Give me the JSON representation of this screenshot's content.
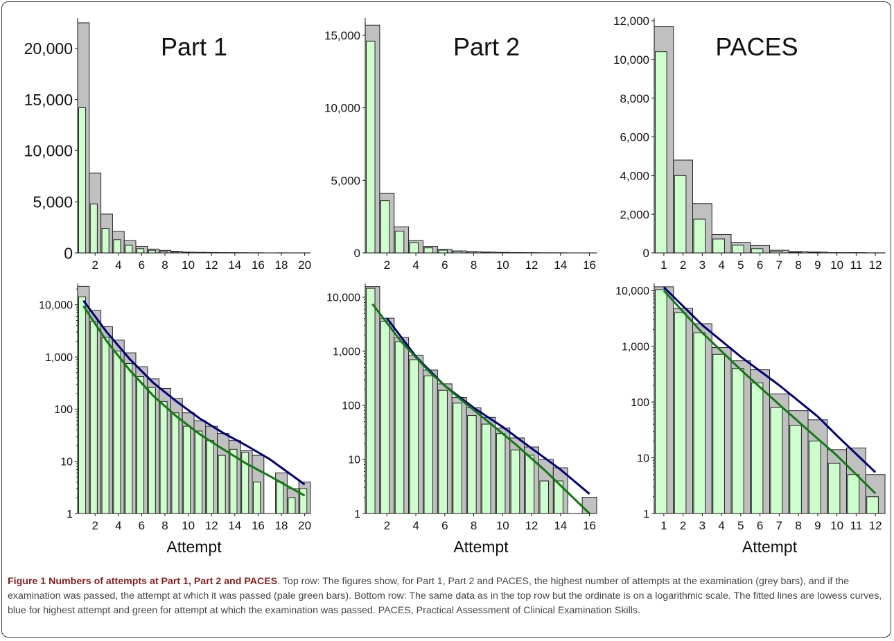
{
  "colors": {
    "grey_bar": "#c0c0c0",
    "green_bar": "#ccffcc",
    "blue_line": "#00007f",
    "green_line": "#117a11",
    "caption_title": "#8b1a1a"
  },
  "caption": {
    "title": "Figure 1 Numbers of attempts at Part 1, Part 2 and PACES",
    "text": ". Top row: The figures show, for Part 1, Part 2 and PACES, the highest number of attempts at the examination (grey bars), and if the examination was passed, the attempt at which it was passed (pale green bars). Bottom row: The same data as in the top row but the ordinate is on a logarithmic scale. The fitted lines are lowess curves, blue for highest attempt and green for attempt at which the examination was passed. PACES, Practical Assessment of Clinical Examination Skills."
  },
  "chart_data": [
    {
      "type": "bar",
      "title": "Part 1",
      "xlabel": "",
      "ylabel": "",
      "yscale": "linear",
      "ylim": [
        0,
        22700
      ],
      "yticks": [
        0,
        5000,
        10000,
        15000,
        20000
      ],
      "ytick_labels": [
        "0",
        "5,000",
        "10,000",
        "15,000",
        "20,000"
      ],
      "xticks": [
        2,
        4,
        6,
        8,
        10,
        12,
        14,
        16,
        18,
        20
      ],
      "categories": [
        1,
        2,
        3,
        4,
        5,
        6,
        7,
        8,
        9,
        10,
        11,
        12,
        13,
        14,
        15,
        16,
        17,
        18,
        19,
        20
      ],
      "series": [
        {
          "name": "highest attempt",
          "values": [
            22500,
            7800,
            3800,
            2100,
            1200,
            650,
            380,
            250,
            160,
            85,
            60,
            47,
            34,
            25,
            16,
            13,
            1,
            6,
            3,
            4
          ]
        },
        {
          "name": "attempt passed",
          "values": [
            14200,
            4800,
            2400,
            1300,
            750,
            420,
            260,
            140,
            85,
            47,
            38,
            25,
            13,
            17,
            15,
            4,
            1,
            4,
            2,
            3
          ]
        }
      ]
    },
    {
      "type": "bar",
      "title": "Part 2",
      "xlabel": "",
      "ylabel": "",
      "yscale": "linear",
      "ylim": [
        0,
        16000
      ],
      "yticks": [
        0,
        5000,
        10000,
        15000
      ],
      "ytick_labels": [
        "0",
        "5,000",
        "10,000",
        "15,000"
      ],
      "xticks": [
        2,
        4,
        6,
        8,
        10,
        12,
        14,
        16
      ],
      "categories": [
        1,
        2,
        3,
        4,
        5,
        6,
        7,
        8,
        9,
        10,
        11,
        12,
        13,
        14,
        15,
        16
      ],
      "series": [
        {
          "name": "highest attempt",
          "values": [
            15700,
            4100,
            1800,
            850,
            450,
            250,
            140,
            90,
            60,
            38,
            25,
            17,
            10,
            7,
            1,
            2
          ]
        },
        {
          "name": "attempt passed",
          "values": [
            14600,
            3600,
            1500,
            700,
            350,
            190,
            110,
            65,
            45,
            30,
            15,
            12,
            4,
            4,
            1,
            1
          ]
        }
      ]
    },
    {
      "type": "bar",
      "title": "PACES",
      "xlabel": "",
      "ylabel": "",
      "yscale": "linear",
      "ylim": [
        0,
        12000
      ],
      "yticks": [
        0,
        2000,
        4000,
        6000,
        8000,
        10000,
        12000
      ],
      "ytick_labels": [
        "0",
        "2,000",
        "4,000",
        "6,000",
        "8,000",
        "10,000",
        "12,000"
      ],
      "xticks": [
        1,
        2,
        3,
        4,
        5,
        6,
        7,
        8,
        9,
        10,
        11,
        12
      ],
      "categories": [
        1,
        2,
        3,
        4,
        5,
        6,
        7,
        8,
        9,
        10,
        11,
        12
      ],
      "series": [
        {
          "name": "highest attempt",
          "values": [
            11700,
            4800,
            2550,
            950,
            550,
            380,
            140,
            70,
            48,
            14,
            15,
            5
          ]
        },
        {
          "name": "attempt passed",
          "values": [
            10400,
            4000,
            1750,
            720,
            400,
            220,
            80,
            38,
            20,
            8,
            5,
            2
          ]
        }
      ]
    },
    {
      "type": "bar",
      "title": "",
      "xlabel": "Attempt",
      "ylabel": "",
      "yscale": "log",
      "ylim": [
        1,
        22700
      ],
      "yticks": [
        1,
        10,
        100,
        1000,
        10000
      ],
      "ytick_labels": [
        "1",
        "10",
        "100",
        "1,000",
        "10,000"
      ],
      "xticks": [
        2,
        4,
        6,
        8,
        10,
        12,
        14,
        16,
        18,
        20
      ],
      "categories": [
        1,
        2,
        3,
        4,
        5,
        6,
        7,
        8,
        9,
        10,
        11,
        12,
        13,
        14,
        15,
        16,
        17,
        18,
        19,
        20
      ],
      "series": [
        {
          "name": "highest attempt",
          "values": [
            22500,
            7800,
            3800,
            2100,
            1200,
            650,
            380,
            250,
            160,
            85,
            60,
            47,
            34,
            25,
            16,
            13,
            1,
            6,
            3,
            4
          ]
        },
        {
          "name": "attempt passed",
          "values": [
            14200,
            4800,
            2400,
            1300,
            750,
            420,
            260,
            140,
            85,
            47,
            38,
            25,
            13,
            17,
            15,
            4,
            1,
            4,
            2,
            3
          ]
        }
      ],
      "lines": [
        {
          "name": "lowess highest attempt",
          "color": "blue",
          "x": [
            1,
            3,
            5,
            7,
            9,
            11,
            13,
            15,
            17,
            20
          ],
          "y": [
            12000,
            3000,
            900,
            320,
            140,
            66,
            35,
            20,
            11,
            3.6
          ]
        },
        {
          "name": "lowess attempt passed",
          "color": "green",
          "x": [
            1,
            3,
            5,
            7,
            9,
            11,
            13,
            15,
            17,
            20
          ],
          "y": [
            9500,
            2000,
            550,
            180,
            72,
            33,
            17,
            9,
            5.2,
            2.2
          ]
        }
      ]
    },
    {
      "type": "bar",
      "title": "",
      "xlabel": "Attempt",
      "ylabel": "",
      "yscale": "log",
      "ylim": [
        1,
        16000
      ],
      "yticks": [
        1,
        10,
        100,
        1000,
        10000
      ],
      "ytick_labels": [
        "1",
        "10",
        "100",
        "1,000",
        "10,000"
      ],
      "xticks": [
        2,
        4,
        6,
        8,
        10,
        12,
        14,
        16
      ],
      "categories": [
        1,
        2,
        3,
        4,
        5,
        6,
        7,
        8,
        9,
        10,
        11,
        12,
        13,
        14,
        15,
        16
      ],
      "series": [
        {
          "name": "highest attempt",
          "values": [
            15700,
            4100,
            1800,
            850,
            450,
            250,
            140,
            90,
            60,
            38,
            25,
            17,
            10,
            7,
            1,
            2
          ]
        },
        {
          "name": "attempt passed",
          "values": [
            14600,
            3600,
            1500,
            700,
            350,
            190,
            110,
            65,
            45,
            30,
            15,
            12,
            4,
            4,
            1,
            1
          ]
        }
      ],
      "lines": [
        {
          "name": "lowess highest attempt",
          "color": "blue",
          "x": [
            2,
            4,
            6,
            8,
            10,
            12,
            14,
            16
          ],
          "y": [
            4100,
            800,
            230,
            90,
            40,
            16,
            6.5,
            2.3
          ]
        },
        {
          "name": "lowess attempt passed",
          "color": "green",
          "x": [
            1,
            3,
            5,
            7,
            9,
            11,
            13,
            16
          ],
          "y": [
            7500,
            1500,
            400,
            135,
            50,
            18,
            6,
            1
          ]
        }
      ]
    },
    {
      "type": "bar",
      "title": "",
      "xlabel": "Attempt",
      "ylabel": "",
      "yscale": "log",
      "ylim": [
        1,
        12000
      ],
      "yticks": [
        1,
        10,
        100,
        1000,
        10000
      ],
      "ytick_labels": [
        "1",
        "10",
        "100",
        "1,000",
        "10,000"
      ],
      "xticks": [
        1,
        2,
        3,
        4,
        5,
        6,
        7,
        8,
        9,
        10,
        11,
        12
      ],
      "categories": [
        1,
        2,
        3,
        4,
        5,
        6,
        7,
        8,
        9,
        10,
        11,
        12
      ],
      "series": [
        {
          "name": "highest attempt",
          "values": [
            11700,
            4800,
            2550,
            950,
            550,
            380,
            140,
            70,
            48,
            14,
            15,
            5
          ]
        },
        {
          "name": "attempt passed",
          "values": [
            10400,
            4000,
            1750,
            720,
            400,
            220,
            80,
            38,
            20,
            8,
            5,
            2
          ]
        }
      ],
      "lines": [
        {
          "name": "lowess highest attempt",
          "color": "blue",
          "x": [
            1,
            3,
            5,
            7,
            9,
            10,
            12
          ],
          "y": [
            11500,
            2400,
            650,
            200,
            55,
            25,
            5.5
          ]
        },
        {
          "name": "lowess attempt passed",
          "color": "green",
          "x": [
            1,
            3,
            5,
            7,
            9,
            10,
            12
          ],
          "y": [
            10000,
            1750,
            380,
            90,
            22,
            11,
            2.3
          ]
        }
      ]
    }
  ]
}
